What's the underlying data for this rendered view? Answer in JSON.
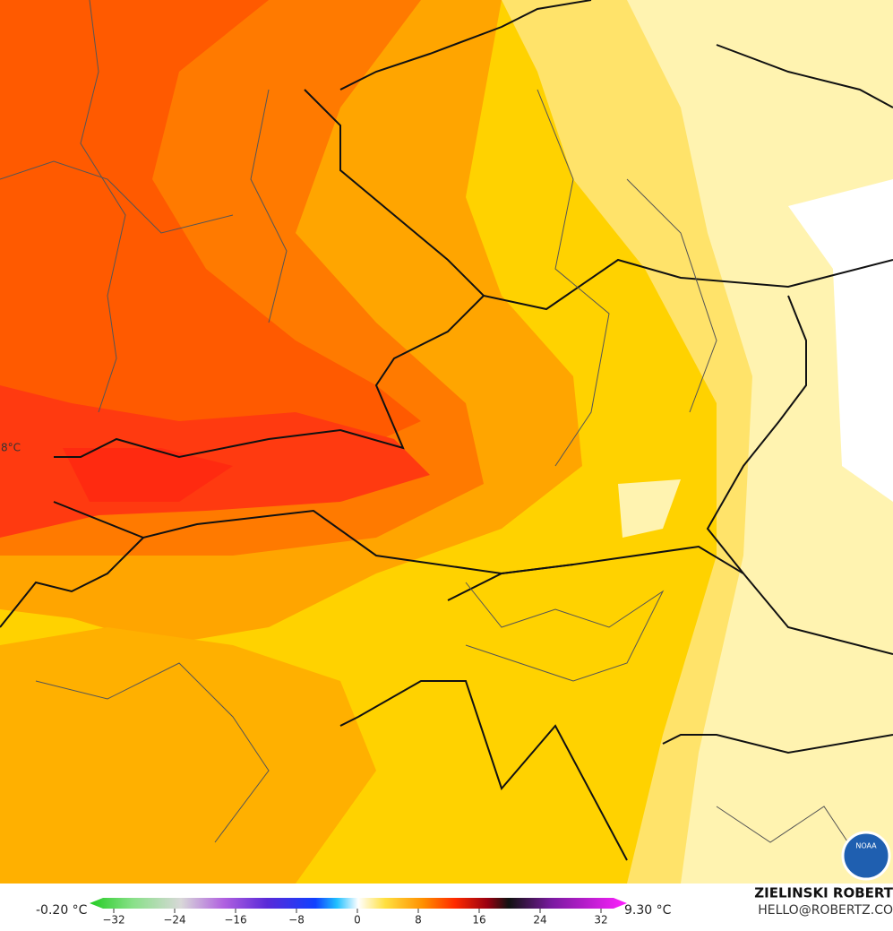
{
  "map": {
    "contour_label": "8°C",
    "logo": "NOAA"
  },
  "legend": {
    "min_label": "-0.20 °C",
    "max_label": "9.30 °C",
    "ticks": [
      {
        "value": -32,
        "label": "−32"
      },
      {
        "value": -24,
        "label": "−24"
      },
      {
        "value": -16,
        "label": "−16"
      },
      {
        "value": -8,
        "label": "−8"
      },
      0,
      8,
      16,
      24,
      32
    ]
  },
  "credit": {
    "name": "ZIELINSKI ROBERT",
    "email": "HELLO@ROBERTZ.CO"
  }
}
